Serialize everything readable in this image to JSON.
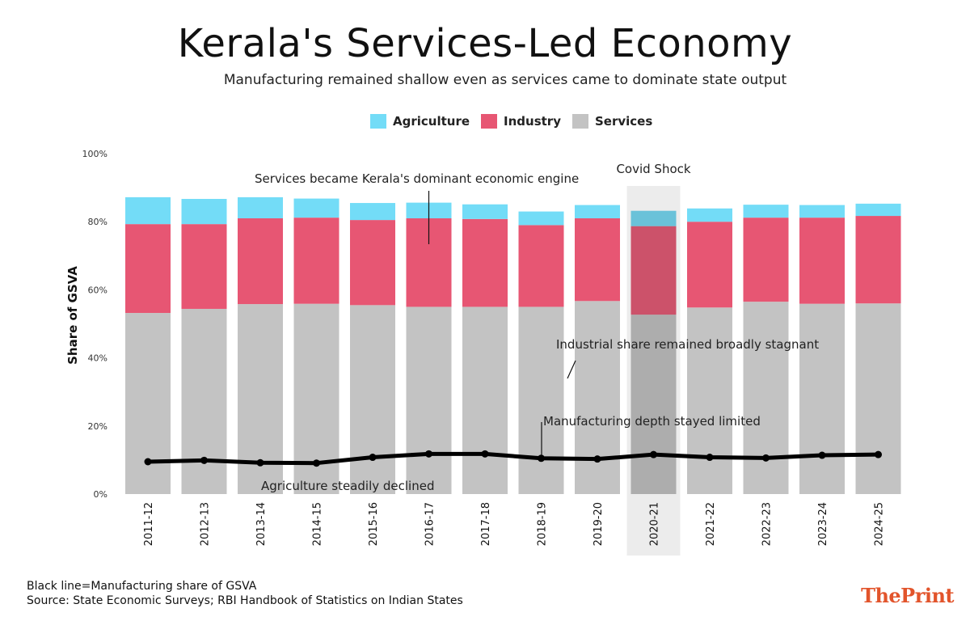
{
  "chart_data": {
    "type": "bar",
    "stacked": true,
    "title": "Kerala's Services-Led Economy",
    "subtitle": "Manufacturing remained shallow even as services came to dominate state output",
    "ylabel": "Share of GSVA",
    "xlabel": "",
    "ylim": [
      0,
      100
    ],
    "yticks": [
      0,
      20,
      40,
      60,
      80,
      100
    ],
    "ytick_suffix": "%",
    "grid": false,
    "legend_position": "top-center",
    "categories": [
      "2011-12",
      "2012-13",
      "2013-14",
      "2014-15",
      "2015-16",
      "2016-17",
      "2017-18",
      "2018-19",
      "2019-20",
      "2020-21",
      "2021-22",
      "2022-23",
      "2023-24",
      "2024-25"
    ],
    "series": [
      {
        "name": "Services",
        "color": "#c3c3c3",
        "values": [
          53.2,
          54.4,
          55.8,
          55.9,
          55.5,
          55.0,
          55.0,
          55.0,
          56.7,
          52.7,
          54.8,
          56.5,
          55.9,
          56.0
        ]
      },
      {
        "name": "Industry",
        "color": "#e75673",
        "values": [
          26.1,
          24.9,
          25.2,
          25.3,
          25.0,
          26.0,
          25.8,
          24.0,
          24.3,
          26.0,
          25.2,
          24.7,
          25.3,
          25.7
        ]
      },
      {
        "name": "Agriculture",
        "color": "#73dcf7",
        "values": [
          7.9,
          7.4,
          6.2,
          5.6,
          5.0,
          4.6,
          4.3,
          4.0,
          3.9,
          4.5,
          3.9,
          3.8,
          3.7,
          3.6
        ]
      }
    ],
    "line_series": {
      "name": "Manufacturing share of GSVA",
      "color": "#000000",
      "values": [
        9.5,
        9.9,
        9.2,
        9.1,
        10.8,
        11.8,
        11.8,
        10.5,
        10.3,
        11.6,
        10.8,
        10.6,
        11.4,
        11.6
      ]
    },
    "highlight": {
      "category": "2020-21",
      "label": "Covid Shock"
    },
    "annotations": [
      {
        "text": "Services became Kerala's dominant economic engine",
        "category": "2016-17"
      },
      {
        "text": "Industrial share remained broadly stagnant",
        "category": "2022-23"
      },
      {
        "text": "Manufacturing depth stayed limited",
        "category": "2018-19"
      },
      {
        "text": "Agriculture steadily declined",
        "category": "2014-15"
      }
    ]
  },
  "legend": {
    "items": [
      {
        "label": "Agriculture",
        "color": "#73dcf7"
      },
      {
        "label": "Industry",
        "color": "#e75673"
      },
      {
        "label": "Services",
        "color": "#c3c3c3"
      }
    ]
  },
  "footer": {
    "note": "Black line=Manufacturing share of GSVA",
    "source": "Source: State Economic Surveys; RBI Handbook of Statistics on Indian States"
  },
  "brand": {
    "name": "ThePrint"
  }
}
